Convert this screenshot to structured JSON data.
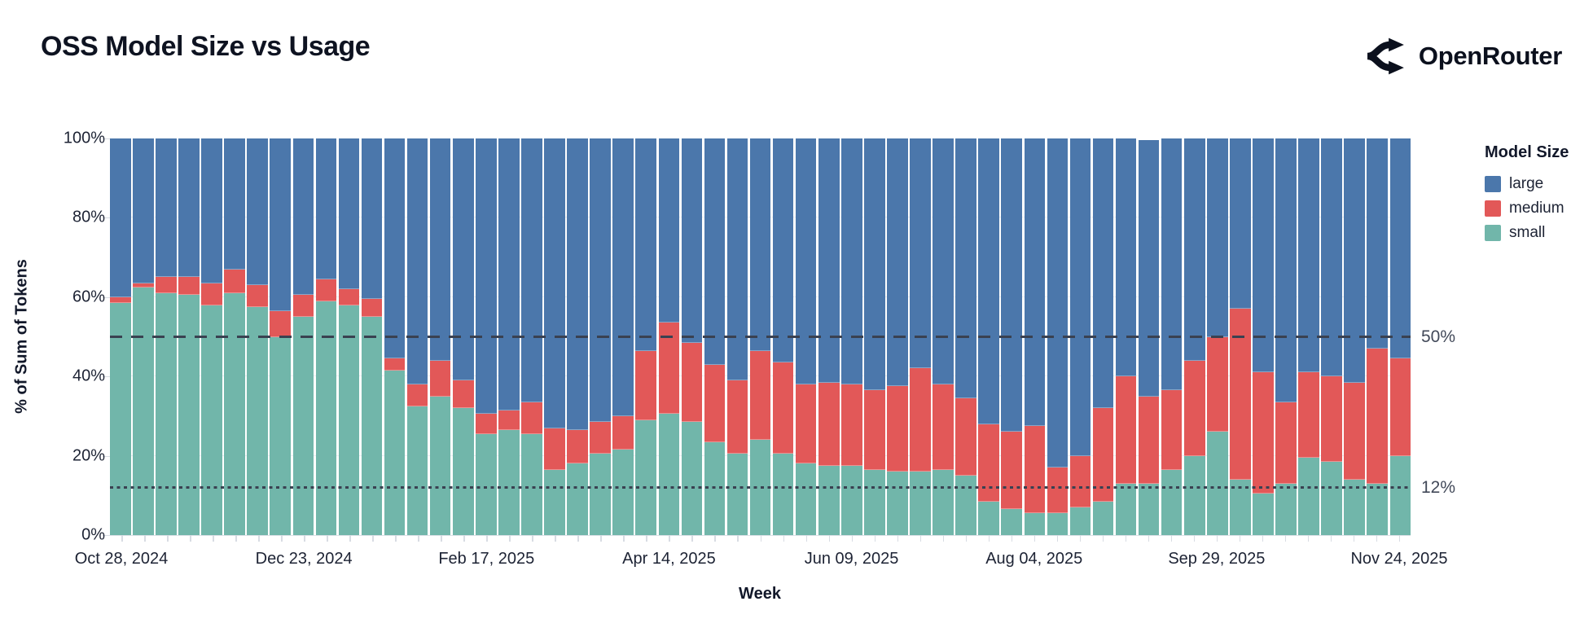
{
  "header": {
    "title": "OSS Model Size vs Usage",
    "brand": "OpenRouter"
  },
  "colors": {
    "large": "#4b77ab",
    "medium": "#e25858",
    "small": "#71b6aa",
    "grid": "#e8ecf2",
    "axis": "#d8dce3",
    "ref_line": "#3a4151",
    "title_text": "#0e1321",
    "axis_text": "#1d2334",
    "ref_text": "#424959"
  },
  "legend": {
    "title": "Model Size",
    "items": [
      {
        "label": "large",
        "color": "#4b77ab"
      },
      {
        "label": "medium",
        "color": "#e25858"
      },
      {
        "label": "small",
        "color": "#71b6aa"
      }
    ]
  },
  "chart_data": {
    "type": "bar",
    "subtype": "stacked-100-percent",
    "title": "OSS Model Size vs Usage",
    "xlabel": "Week",
    "ylabel": "% of Sum of Tokens",
    "ylim": [
      0,
      100
    ],
    "grid": "horizontal",
    "legend_position": "right",
    "y_ticks": [
      {
        "value": 0,
        "label": "0%"
      },
      {
        "value": 20,
        "label": "20%"
      },
      {
        "value": 40,
        "label": "40%"
      },
      {
        "value": 60,
        "label": "60%"
      },
      {
        "value": 80,
        "label": "80%"
      },
      {
        "value": 100,
        "label": "100%"
      }
    ],
    "x_tick_every": 8,
    "x_tick_labels": [
      "Oct 28, 2024",
      "Dec 23, 2024",
      "Feb 17, 2025",
      "Apr 14, 2025",
      "Jun 09, 2025",
      "Aug 04, 2025",
      "Sep 29, 2025",
      "Nov 24, 2025"
    ],
    "ref_lines": [
      {
        "value": 50,
        "label": "50%",
        "style": "dashed"
      },
      {
        "value": 12,
        "label": "12%",
        "style": "dotted"
      }
    ],
    "categories": [
      "Oct 28, 2024",
      "Nov 04, 2024",
      "Nov 11, 2024",
      "Nov 18, 2024",
      "Nov 25, 2024",
      "Dec 02, 2024",
      "Dec 09, 2024",
      "Dec 16, 2024",
      "Dec 23, 2024",
      "Dec 30, 2024",
      "Jan 06, 2025",
      "Jan 13, 2025",
      "Jan 20, 2025",
      "Jan 27, 2025",
      "Feb 03, 2025",
      "Feb 10, 2025",
      "Feb 17, 2025",
      "Feb 24, 2025",
      "Mar 03, 2025",
      "Mar 10, 2025",
      "Mar 17, 2025",
      "Mar 24, 2025",
      "Mar 31, 2025",
      "Apr 07, 2025",
      "Apr 14, 2025",
      "Apr 21, 2025",
      "Apr 28, 2025",
      "May 05, 2025",
      "May 12, 2025",
      "May 19, 2025",
      "May 26, 2025",
      "Jun 02, 2025",
      "Jun 09, 2025",
      "Jun 16, 2025",
      "Jun 23, 2025",
      "Jun 30, 2025",
      "Jul 07, 2025",
      "Jul 14, 2025",
      "Jul 21, 2025",
      "Jul 28, 2025",
      "Aug 04, 2025",
      "Aug 11, 2025",
      "Aug 18, 2025",
      "Aug 25, 2025",
      "Sep 01, 2025",
      "Sep 08, 2025",
      "Sep 15, 2025",
      "Sep 22, 2025",
      "Sep 29, 2025",
      "Oct 06, 2025",
      "Oct 13, 2025",
      "Oct 20, 2025",
      "Oct 27, 2025",
      "Nov 03, 2025",
      "Nov 10, 2025",
      "Nov 17, 2025",
      "Nov 24, 2025"
    ],
    "series": [
      {
        "name": "small",
        "color": "#71b6aa",
        "values": [
          58.5,
          62.5,
          61,
          60.5,
          58,
          61,
          57.5,
          50,
          55,
          59,
          58,
          55,
          41.5,
          32.5,
          35,
          32,
          25.5,
          26.5,
          25.5,
          16.5,
          18,
          20.5,
          21.5,
          29,
          30.5,
          28.5,
          23.5,
          20.5,
          24,
          20.5,
          18,
          17.5,
          17.5,
          16.5,
          16,
          16,
          16.5,
          15,
          8.5,
          6.5,
          5.5,
          5.5,
          7,
          8.5,
          13,
          13,
          16.5,
          20,
          26,
          14,
          10.5,
          13,
          19.5,
          18.5,
          14,
          13,
          20
        ]
      },
      {
        "name": "medium",
        "color": "#e25858",
        "values": [
          1.5,
          1,
          4,
          4.5,
          5.5,
          6,
          5.5,
          6.5,
          5.5,
          5.5,
          4,
          4.5,
          3,
          5.5,
          9,
          7,
          5,
          5,
          8,
          10.5,
          8.5,
          8,
          8.5,
          17.5,
          23,
          20,
          19.5,
          18.5,
          22.5,
          23,
          20,
          21,
          20.5,
          20,
          21.5,
          26,
          21.5,
          19.5,
          19.5,
          19.5,
          22,
          11.5,
          13,
          23.5,
          27,
          22,
          20,
          24,
          24,
          43,
          30.5,
          20.5,
          21.5,
          21.5,
          24.5,
          34,
          24.5
        ]
      },
      {
        "name": "large",
        "color": "#4b77ab",
        "values": [
          40,
          36.5,
          35,
          35,
          36.5,
          33,
          37,
          43.5,
          39.5,
          35.5,
          38,
          40.5,
          55.5,
          62,
          56,
          61,
          69.5,
          68.5,
          66.5,
          73,
          73.5,
          71.5,
          70,
          53.5,
          46.5,
          51.5,
          57,
          61,
          53.5,
          56.5,
          62,
          61.5,
          62,
          63.5,
          62.5,
          58,
          62,
          65.5,
          72,
          74,
          72.5,
          83,
          80,
          68,
          60,
          64.5,
          63.5,
          56,
          50,
          43,
          59,
          66.5,
          59,
          60,
          61.5,
          53,
          55.5
        ]
      }
    ]
  }
}
